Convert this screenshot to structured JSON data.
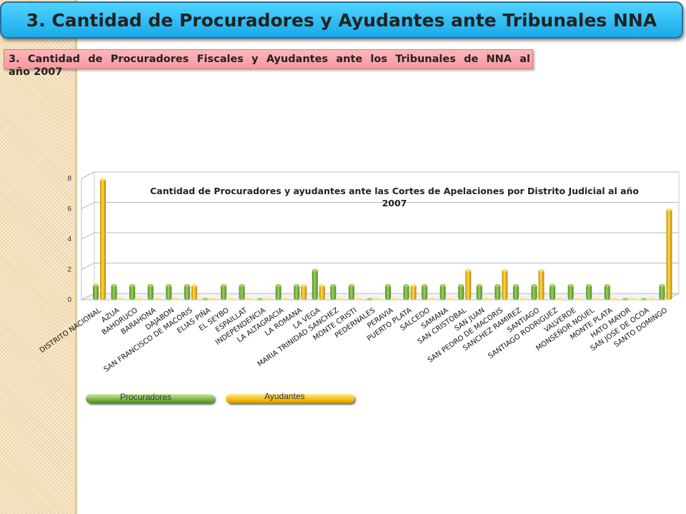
{
  "header": {
    "title": "3. Cantidad de Procuradores y Ayudantes ante Tribunales NNA",
    "subtitle_line1": "3. Cantidad de Procuradores Fiscales y Ayudantes ante los Tribunales de NNA al",
    "subtitle_line2": "año 2007"
  },
  "colors": {
    "procuradores": "#7cb342",
    "ayudantes": "#f0b400",
    "title_bar": "#29b6f6",
    "subtitle_box": "#ffabae"
  },
  "chart_data": {
    "type": "bar",
    "title_line1": "Cantidad de Procuradores y ayudantes ante las Cortes de Apelaciones  por Distrito Judicial al año",
    "title_line2": "2007",
    "ylim": [
      0,
      8
    ],
    "yticks": [
      "0",
      "2",
      "4",
      "6",
      "8"
    ],
    "grid": true,
    "legend_position": "bottom-left",
    "categories": [
      "DISTRITO NACIONAL",
      "AZUA",
      "BAHORUCO",
      "BARAHONA",
      "DAJABON",
      "SAN FRANCISCO DE MACORIS",
      "ELIAS PIÑA",
      "EL SEYBO",
      "ESPAILLAT",
      "INDEPENDENCIA",
      "LA ALTAGRACIA",
      "LA ROMANA",
      "LA VEGA",
      "MARIA TRINIDAD SANCHEZ",
      "MONTE CRISTI",
      "PEDERNALES",
      "PERAVIA",
      "PUERTO PLATA",
      "SALCEDO",
      "SAMANA",
      "SAN CRISTOBAL",
      "SAN JUAN",
      "SAN PEDRO DE MACORIS",
      "SANCHEZ RAMIREZ",
      "SANTIAGO",
      "SANTIAGO RODRIGUEZ",
      "VALVERDE",
      "MONSEÑOR NOUEL",
      "MONTE PLATA",
      "HATO MAYOR",
      "SAN JOSE DE OCOA",
      "SANTO DOMINGO"
    ],
    "series": [
      {
        "name": "Procuradores",
        "values": [
          1,
          1,
          1,
          1,
          1,
          1,
          0,
          1,
          1,
          0,
          1,
          1,
          2,
          1,
          1,
          0,
          1,
          1,
          1,
          1,
          1,
          1,
          1,
          1,
          1,
          1,
          1,
          1,
          1,
          0,
          0,
          1
        ]
      },
      {
        "name": "Ayudantes",
        "values": [
          8,
          0,
          0,
          0,
          0,
          1,
          0,
          0,
          0,
          0,
          0,
          1,
          1,
          0,
          0,
          0,
          0,
          1,
          0,
          0,
          2,
          0,
          2,
          0,
          2,
          0,
          0,
          0,
          0,
          0,
          0,
          6
        ]
      }
    ]
  }
}
